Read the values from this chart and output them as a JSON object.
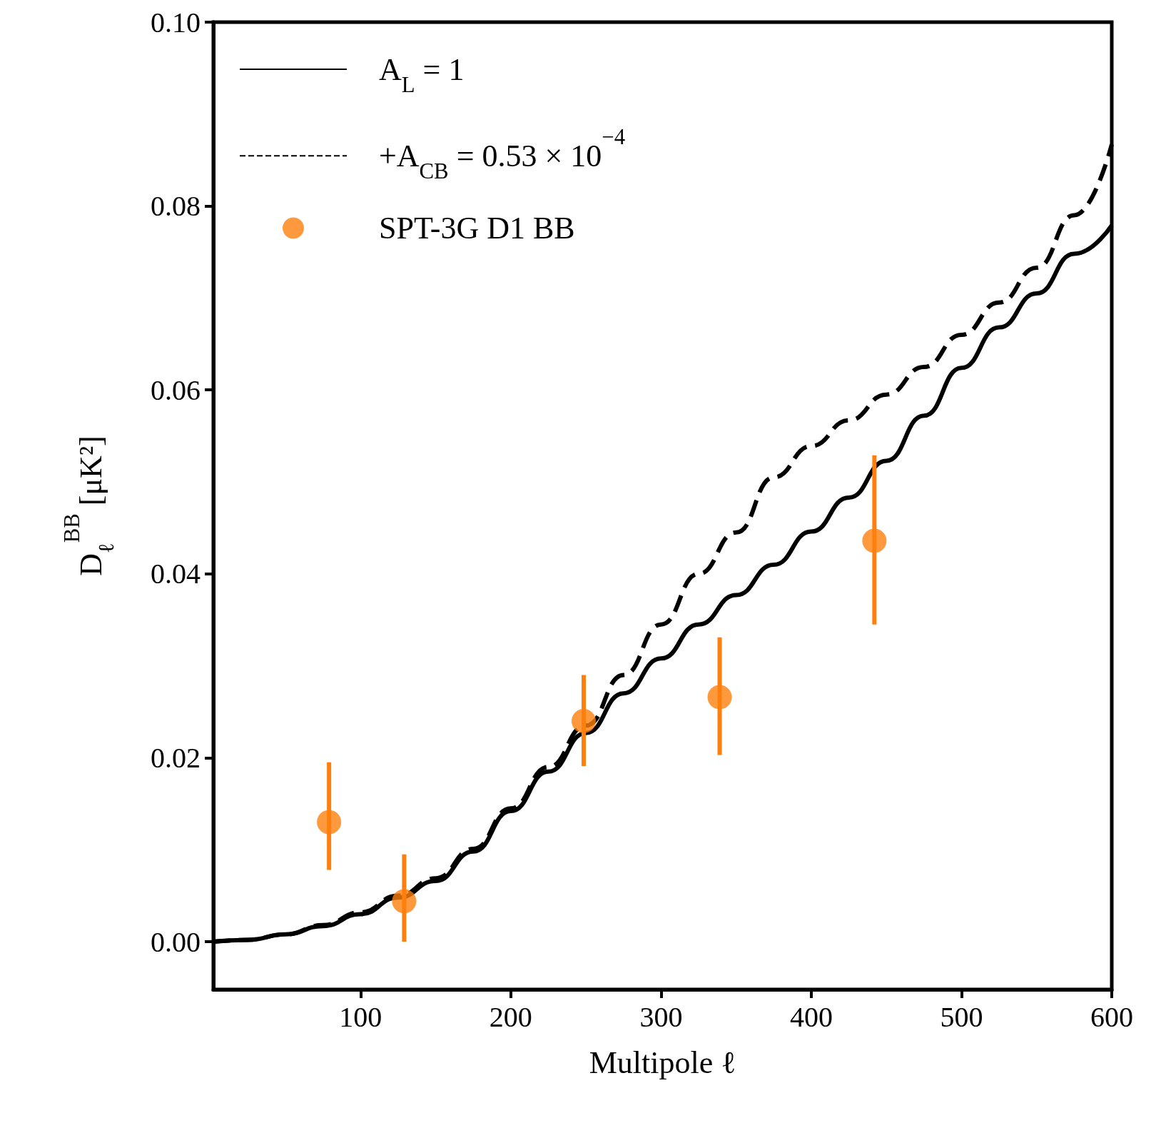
{
  "chart_data": {
    "type": "line",
    "xlabel": "Multipole ℓ",
    "ylabel": "D$_{ℓ}$$^{BB}$ [μK²]",
    "xlim": [
      2,
      600
    ],
    "xticks": [
      100,
      200,
      300,
      400,
      500,
      600
    ],
    "ylim": [
      -0.0052,
      0.1
    ],
    "yticks": [
      {
        "value": 0,
        "label": "0.00"
      },
      {
        "value": 0.02,
        "label": "0.02"
      },
      {
        "value": 0.04,
        "label": "0.04"
      },
      {
        "value": 0.06,
        "label": "0.06"
      },
      {
        "value": 0.08,
        "label": "0.08"
      },
      {
        "value": 0.1,
        "label": "0.10"
      }
    ],
    "grid": false,
    "legend": "top left",
    "series": [
      {
        "name": "A$_{L}$ = 1",
        "line_style": "solid",
        "marker": "none",
        "color": "#000000",
        "x": [
          2,
          25,
          50,
          75,
          100,
          125,
          150,
          175,
          200,
          225,
          250,
          275,
          300,
          325,
          350,
          375,
          400,
          425,
          450,
          475,
          500,
          525,
          550,
          575,
          600
        ],
        "values": [
          0,
          0.0002,
          0.0008,
          0.0017,
          0.003,
          0.0048,
          0.0066,
          0.0098,
          0.0142,
          0.0185,
          0.0227,
          0.027,
          0.0308,
          0.0345,
          0.0377,
          0.041,
          0.0446,
          0.0483,
          0.0523,
          0.0572,
          0.0624,
          0.0668,
          0.0705,
          0.0748,
          0.0779
        ]
      },
      {
        "name": "+A$_{CB}$ = 0.53 × 10$^{−4}$",
        "line_style": "dashed",
        "marker": "none",
        "color": "#000000",
        "x": [
          2,
          25,
          50,
          75,
          100,
          125,
          150,
          175,
          200,
          225,
          250,
          275,
          300,
          325,
          350,
          375,
          400,
          425,
          450,
          475,
          500,
          525,
          550,
          575,
          600
        ],
        "values": [
          0,
          0.0002,
          0.0008,
          0.0018,
          0.0032,
          0.005,
          0.0069,
          0.0101,
          0.0145,
          0.019,
          0.0235,
          0.029,
          0.0345,
          0.04,
          0.0445,
          0.0505,
          0.0539,
          0.0567,
          0.0595,
          0.0625,
          0.066,
          0.0695,
          0.0733,
          0.079,
          0.0867
        ]
      },
      {
        "name": "SPT-3G D1 BB",
        "type": "scatter",
        "marker": "circle",
        "color": "#ff7f0e",
        "x": [
          79,
          129,
          248.5,
          339,
          442
        ],
        "values": [
          0.013,
          0.0044,
          0.024,
          0.0266,
          0.0436
        ],
        "errors": [
          [
            0.0078,
            0.0195
          ],
          [
            0,
            0.0095
          ],
          [
            0.0191,
            0.029
          ],
          [
            0.0203,
            0.0331
          ],
          [
            0.0345,
            0.0529
          ]
        ]
      }
    ]
  }
}
